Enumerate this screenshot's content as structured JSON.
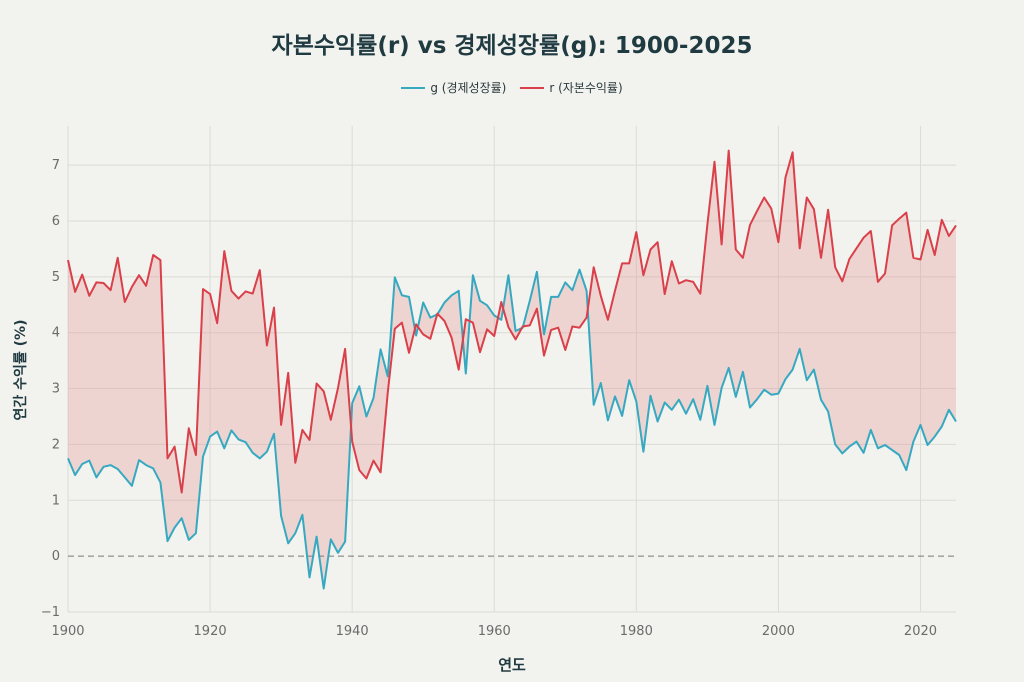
{
  "chart_data": {
    "type": "line",
    "title": "자본수익률(r) vs 경제성장률(g): 1900-2025",
    "xlabel": "연도",
    "ylabel": "연간 수익률 (%)",
    "xlim": [
      1900,
      2025
    ],
    "ylim": [
      -1.0,
      7.7
    ],
    "xticks": [
      1900,
      1920,
      1940,
      1960,
      1980,
      2000,
      2020
    ],
    "yticks": [
      -1,
      0,
      1,
      2,
      3,
      4,
      5,
      6,
      7
    ],
    "grid": true,
    "legend_position": "top-center",
    "reference_line": {
      "y": 0,
      "style": "dashed"
    },
    "fill_between": {
      "series": [
        "r",
        "g"
      ],
      "color": "#E58A8A"
    },
    "x_start": 1900,
    "series": [
      {
        "name": "g (경제성장률)",
        "key": "g",
        "color": "#36A9C1",
        "values": [
          1.75,
          1.45,
          1.65,
          1.71,
          1.41,
          1.6,
          1.63,
          1.56,
          1.41,
          1.26,
          1.72,
          1.63,
          1.57,
          1.32,
          0.27,
          0.51,
          0.68,
          0.29,
          0.41,
          1.78,
          2.14,
          2.23,
          1.93,
          2.25,
          2.09,
          2.04,
          1.85,
          1.75,
          1.87,
          2.19,
          0.72,
          0.23,
          0.41,
          0.74,
          -0.38,
          0.35,
          -0.58,
          0.3,
          0.06,
          0.26,
          2.74,
          3.04,
          2.5,
          2.83,
          3.7,
          3.22,
          4.99,
          4.67,
          4.64,
          3.95,
          4.54,
          4.27,
          4.33,
          4.54,
          4.67,
          4.75,
          3.27,
          5.03,
          4.57,
          4.49,
          4.31,
          4.23,
          5.03,
          4.03,
          4.09,
          4.57,
          5.09,
          3.97,
          4.64,
          4.64,
          4.9,
          4.76,
          5.13,
          4.75,
          2.71,
          3.1,
          2.43,
          2.86,
          2.51,
          3.15,
          2.77,
          1.87,
          2.87,
          2.41,
          2.75,
          2.62,
          2.8,
          2.55,
          2.81,
          2.44,
          3.05,
          2.35,
          3.01,
          3.37,
          2.85,
          3.3,
          2.66,
          2.81,
          2.98,
          2.89,
          2.91,
          3.17,
          3.34,
          3.71,
          3.15,
          3.34,
          2.8,
          2.59,
          2.0,
          1.84,
          1.96,
          2.05,
          1.85,
          2.26,
          1.93,
          1.99,
          1.9,
          1.81,
          1.54,
          2.05,
          2.35,
          1.99,
          2.14,
          2.32,
          2.62,
          2.41
        ]
      },
      {
        "name": "r (자본수익률)",
        "key": "r",
        "color": "#D9404A",
        "values": [
          5.3,
          4.73,
          5.04,
          4.66,
          4.9,
          4.89,
          4.76,
          5.34,
          4.55,
          4.82,
          5.03,
          4.84,
          5.39,
          5.3,
          1.75,
          1.96,
          1.14,
          2.29,
          1.81,
          4.78,
          4.69,
          4.17,
          5.46,
          4.75,
          4.61,
          4.74,
          4.7,
          5.12,
          3.77,
          4.45,
          2.35,
          3.28,
          1.67,
          2.26,
          2.08,
          3.09,
          2.95,
          2.44,
          3.01,
          3.71,
          2.05,
          1.54,
          1.39,
          1.71,
          1.5,
          2.92,
          4.07,
          4.18,
          3.64,
          4.15,
          3.97,
          3.89,
          4.34,
          4.21,
          3.91,
          3.34,
          4.24,
          4.18,
          3.65,
          4.06,
          3.94,
          4.55,
          4.1,
          3.88,
          4.11,
          4.13,
          4.43,
          3.59,
          4.05,
          4.09,
          3.69,
          4.11,
          4.09,
          4.27,
          5.17,
          4.66,
          4.23,
          4.75,
          5.24,
          5.24,
          5.8,
          5.03,
          5.49,
          5.62,
          4.69,
          5.28,
          4.88,
          4.94,
          4.91,
          4.7,
          5.94,
          7.06,
          5.58,
          7.26,
          5.49,
          5.34,
          5.93,
          6.18,
          6.42,
          6.22,
          5.62,
          6.78,
          7.23,
          5.51,
          6.42,
          6.21,
          5.34,
          6.2,
          5.17,
          4.92,
          5.32,
          5.51,
          5.7,
          5.82,
          4.91,
          5.06,
          5.92,
          6.04,
          6.15,
          5.34,
          5.31,
          5.84,
          5.39,
          6.02,
          5.73,
          5.92
        ]
      }
    ]
  }
}
